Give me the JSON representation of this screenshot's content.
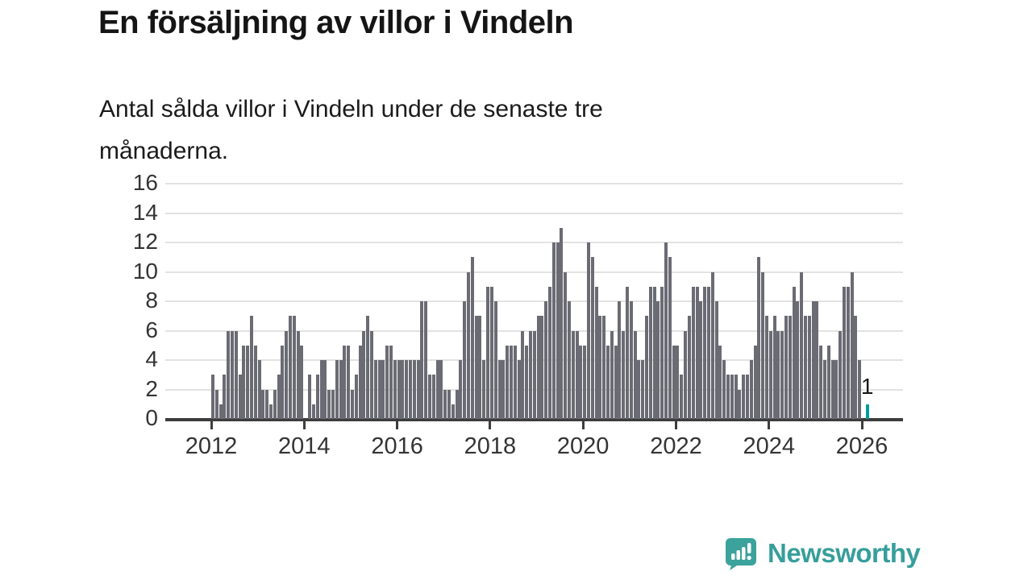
{
  "header": {
    "title": "En försäljning av villor i Vindeln",
    "subtitle_line1": "Antal sålda villor i Vindeln under de senaste tre",
    "subtitle_line2": "månaderna."
  },
  "chart_data": {
    "type": "bar",
    "title": "En försäljning av villor i Vindeln",
    "subtitle": "Antal sålda villor i Vindeln under de senaste tre månaderna.",
    "frequency": "monthly",
    "start": "2012-01",
    "end": "2026-02",
    "values": [
      3,
      2,
      1,
      3,
      6,
      6,
      6,
      3,
      5,
      5,
      7,
      5,
      4,
      2,
      2,
      1,
      2,
      3,
      5,
      6,
      7,
      7,
      6,
      5,
      0,
      3,
      1,
      3,
      4,
      4,
      2,
      2,
      4,
      4,
      5,
      5,
      2,
      3,
      5,
      6,
      7,
      6,
      4,
      4,
      4,
      5,
      5,
      4,
      4,
      4,
      4,
      4,
      4,
      4,
      8,
      8,
      3,
      3,
      4,
      4,
      2,
      2,
      1,
      2,
      4,
      8,
      10,
      11,
      7,
      7,
      4,
      9,
      9,
      8,
      4,
      4,
      5,
      5,
      5,
      4,
      6,
      5,
      6,
      6,
      7,
      7,
      8,
      9,
      12,
      12,
      13,
      10,
      8,
      6,
      6,
      5,
      5,
      12,
      11,
      9,
      7,
      7,
      5,
      6,
      5,
      8,
      6,
      9,
      8,
      6,
      4,
      4,
      7,
      9,
      9,
      8,
      9,
      12,
      11,
      5,
      5,
      3,
      6,
      7,
      9,
      9,
      8,
      9,
      9,
      10,
      8,
      5,
      4,
      3,
      3,
      3,
      2,
      3,
      3,
      4,
      5,
      11,
      10,
      7,
      6,
      7,
      6,
      6,
      7,
      7,
      9,
      8,
      10,
      7,
      7,
      8,
      8,
      5,
      4,
      5,
      4,
      4,
      6,
      9,
      9,
      10,
      7,
      4,
      0,
      1
    ],
    "highlight_last": {
      "index": 169,
      "value": 1,
      "label": "1",
      "color": "#009c9c"
    },
    "bar_color": "#6b6b74",
    "grid": true,
    "ylim": [
      0,
      16
    ],
    "y_ticks": [
      0,
      2,
      4,
      6,
      8,
      10,
      12,
      14,
      16
    ],
    "x_tick_labels": [
      "2012",
      "2014",
      "2016",
      "2018",
      "2020",
      "2022",
      "2024",
      "2026"
    ],
    "x_tick_interval_months": 24,
    "legend": "none",
    "xlabel": "",
    "ylabel": ""
  },
  "footer": {
    "brand": "Newsworthy",
    "brand_color": "#379e9c",
    "logo_icon": "speech-bubble-bar-chart-icon"
  }
}
